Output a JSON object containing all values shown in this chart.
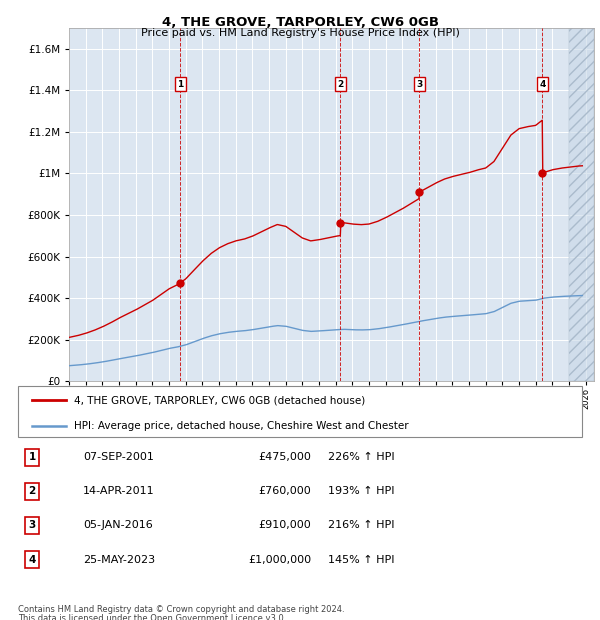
{
  "title": "4, THE GROVE, TARPORLEY, CW6 0GB",
  "subtitle": "Price paid vs. HM Land Registry's House Price Index (HPI)",
  "legend_line1": "4, THE GROVE, TARPORLEY, CW6 0GB (detached house)",
  "legend_line2": "HPI: Average price, detached house, Cheshire West and Chester",
  "footer1": "Contains HM Land Registry data © Crown copyright and database right 2024.",
  "footer2": "This data is licensed under the Open Government Licence v3.0.",
  "transactions": [
    {
      "num": 1,
      "date": "07-SEP-2001",
      "price": 475000,
      "hpi_pct": "226%",
      "x_year": 2001.69
    },
    {
      "num": 2,
      "date": "14-APR-2011",
      "price": 760000,
      "hpi_pct": "193%",
      "x_year": 2011.29
    },
    {
      "num": 3,
      "date": "05-JAN-2016",
      "price": 910000,
      "hpi_pct": "216%",
      "x_year": 2016.02
    },
    {
      "num": 4,
      "date": "25-MAY-2023",
      "price": 1000000,
      "hpi_pct": "145%",
      "x_year": 2023.4
    }
  ],
  "red_line_color": "#cc0000",
  "blue_line_color": "#6699cc",
  "plot_bg_color": "#dce6f1",
  "ylim": [
    0,
    1700000
  ],
  "yticks": [
    0,
    200000,
    400000,
    600000,
    800000,
    1000000,
    1200000,
    1400000,
    1600000
  ],
  "xlim_start": 1995.0,
  "xlim_end": 2026.5,
  "hpi_years": [
    1995.0,
    1995.5,
    1996.0,
    1996.5,
    1997.0,
    1997.5,
    1998.0,
    1998.5,
    1999.0,
    1999.5,
    2000.0,
    2000.5,
    2001.0,
    2001.5,
    2002.0,
    2002.5,
    2003.0,
    2003.5,
    2004.0,
    2004.5,
    2005.0,
    2005.5,
    2006.0,
    2006.5,
    2007.0,
    2007.5,
    2008.0,
    2008.5,
    2009.0,
    2009.5,
    2010.0,
    2010.5,
    2011.0,
    2011.5,
    2012.0,
    2012.5,
    2013.0,
    2013.5,
    2014.0,
    2014.5,
    2015.0,
    2015.5,
    2016.0,
    2016.5,
    2017.0,
    2017.5,
    2018.0,
    2018.5,
    2019.0,
    2019.5,
    2020.0,
    2020.5,
    2021.0,
    2021.5,
    2022.0,
    2022.5,
    2023.0,
    2023.5,
    2024.0,
    2024.5,
    2025.0,
    2025.5,
    2026.0
  ],
  "hpi_values": [
    75000,
    78000,
    82000,
    87000,
    93000,
    100000,
    108000,
    115000,
    122000,
    130000,
    138000,
    148000,
    158000,
    165000,
    175000,
    190000,
    205000,
    218000,
    228000,
    235000,
    240000,
    243000,
    248000,
    255000,
    262000,
    268000,
    265000,
    255000,
    245000,
    240000,
    242000,
    245000,
    248000,
    250000,
    248000,
    247000,
    248000,
    252000,
    258000,
    265000,
    272000,
    280000,
    288000,
    295000,
    302000,
    308000,
    312000,
    315000,
    318000,
    322000,
    325000,
    335000,
    355000,
    375000,
    385000,
    388000,
    390000,
    400000,
    405000,
    408000,
    410000,
    412000,
    413000
  ]
}
